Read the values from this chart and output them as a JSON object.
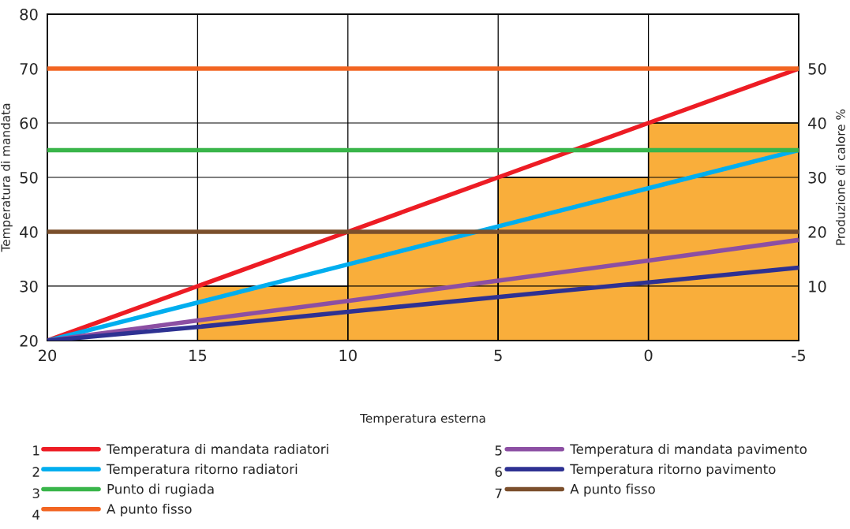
{
  "chart_data": {
    "type": "line",
    "xlabel": "Temperatura esterna",
    "ylabel": "Temperatura di mandata",
    "y2label": "Produzione di calore %",
    "x": [
      20,
      15,
      10,
      5,
      0,
      -5
    ],
    "xlim": [
      20,
      -5
    ],
    "xticks": [
      20,
      15,
      10,
      5,
      0,
      -5
    ],
    "ylim": [
      20,
      80
    ],
    "yticks": [
      20,
      30,
      40,
      50,
      60,
      70,
      80
    ],
    "y2lim": [
      0,
      60
    ],
    "y2ticks": [
      {
        "value": 0,
        "label": null
      },
      10,
      20,
      30,
      40,
      50,
      {
        "value": 60,
        "label": null
      }
    ],
    "grid": true,
    "legend": "bottom",
    "annotations": [
      "1",
      "2",
      "3",
      "4",
      "5",
      "6",
      "7"
    ],
    "series": [
      {
        "type": "bar",
        "axis": "y2",
        "color": "#f9ae3b",
        "x": [
          12.5,
          7.5,
          2.5,
          -2.5
        ],
        "values": [
          10,
          20,
          30,
          40
        ]
      },
      {
        "name": "Temperatura di mandata radiatori",
        "color": "#ed1c24",
        "values": [
          20,
          30,
          40,
          50,
          60,
          70
        ]
      },
      {
        "name": "Temperatura ritorno radiatori",
        "color": "#00aeef",
        "values": [
          20,
          27,
          34,
          41,
          48,
          55
        ]
      },
      {
        "name": "Punto di rugiada",
        "color": "#39b54a",
        "values": [
          55,
          55,
          55,
          55,
          55,
          55
        ]
      },
      {
        "name": "A punto fisso",
        "color": "#f26522",
        "values": [
          70,
          70,
          70,
          70,
          70,
          70
        ]
      },
      {
        "name": "Temperatura di mandata pavimento",
        "color": "#8c4fa3",
        "values": [
          20,
          23.7,
          27.3,
          31,
          34.7,
          38.5
        ]
      },
      {
        "name": "Temperatura ritorno pavimento",
        "color": "#2e3192",
        "values": [
          20,
          22.5,
          25.3,
          28,
          30.7,
          33.4
        ]
      },
      {
        "name": "A punto fisso",
        "color": "#7b4f2c",
        "values": [
          40,
          40,
          40,
          40,
          40,
          40
        ]
      }
    ]
  }
}
